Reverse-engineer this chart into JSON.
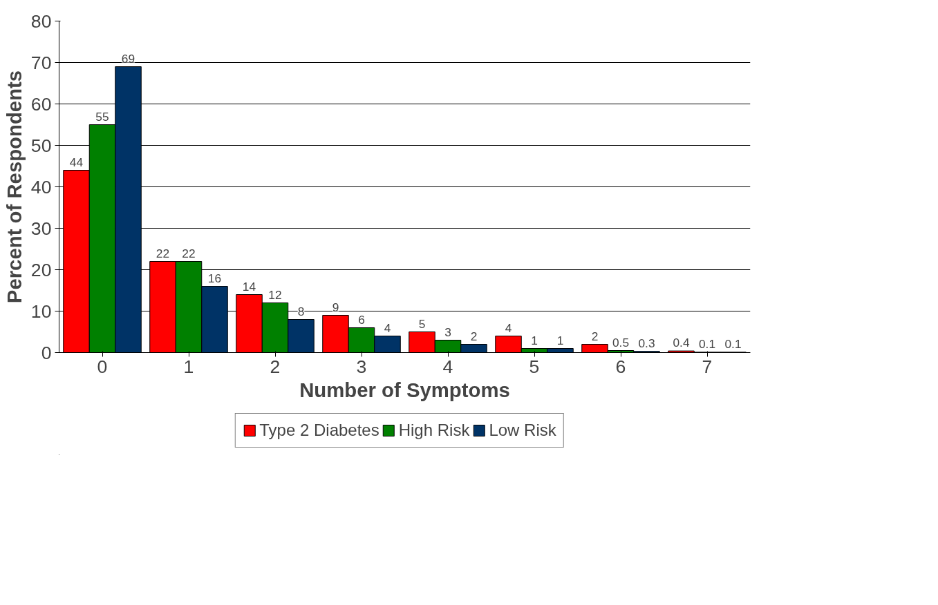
{
  "chart_data": {
    "type": "bar",
    "xlabel": "Number of Symptoms",
    "ylabel": "Percent of Respondents",
    "categories": [
      "0",
      "1",
      "2",
      "3",
      "4",
      "5",
      "6",
      "7"
    ],
    "series": [
      {
        "name": "Type 2 Diabetes",
        "color": "#ff0000",
        "values": [
          44,
          22,
          14,
          9,
          5,
          4,
          2,
          0.4
        ]
      },
      {
        "name": "High Risk",
        "color": "#008000",
        "values": [
          55,
          22,
          12,
          6,
          3,
          1,
          0.5,
          0.1
        ]
      },
      {
        "name": "Low Risk",
        "color": "#003366",
        "values": [
          69,
          16,
          8,
          4,
          2,
          1,
          0.3,
          0.1
        ]
      }
    ],
    "ylim": [
      0,
      80
    ],
    "yticks": [
      0,
      10,
      20,
      30,
      40,
      50,
      60,
      70,
      80
    ],
    "grid": "y",
    "legend": "bottom",
    "data_labels": true
  }
}
